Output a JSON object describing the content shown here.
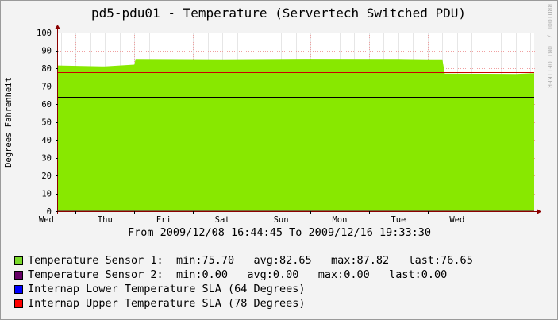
{
  "title": "pd5-pdu01 - Temperature (Servertech Switched PDU)",
  "watermark": "RRDTOOL / TOBI OETIKER",
  "time_range_label": "From 2009/12/08 16:44:45 To 2009/12/16 19:33:30",
  "colors": {
    "background": "#f3f3f3",
    "plot_bg": "#ffffff",
    "area_fill": "#88e800",
    "grid": "#f0a0a0",
    "axis": "#8b0000",
    "lower_sla": "#000000",
    "upper_sla": "#cc0000"
  },
  "legend": [
    {
      "swatch_color": "#7ad92b",
      "label": "Temperature Sensor 1:",
      "stats": "min:75.70   avg:82.65   max:87.82   last:76.65"
    },
    {
      "swatch_color": "#660066",
      "label": "Temperature Sensor 2:",
      "stats": "min:0.00   avg:0.00   max:0.00   last:0.00"
    },
    {
      "swatch_color": "#0000ff",
      "label": "Internap Lower Temperature SLA (64 Degrees)",
      "stats": ""
    },
    {
      "swatch_color": "#ff0000",
      "label": "Internap Upper Temperature SLA (78 Degrees)",
      "stats": ""
    }
  ],
  "chart_data": {
    "type": "area",
    "title": "pd5-pdu01 - Temperature (Servertech Switched PDU)",
    "ylabel": "Degrees Fahrenheit",
    "xlabel": "",
    "ylim": [
      0,
      100
    ],
    "yticks": [
      0,
      10,
      20,
      30,
      40,
      50,
      60,
      70,
      80,
      90,
      100
    ],
    "x_start": "2009/12/08 16:44:45",
    "x_end": "2009/12/16 19:33:30",
    "x_tick_labels": [
      "Wed",
      "Thu",
      "Fri",
      "Sat",
      "Sun",
      "Mon",
      "Tue",
      "Wed"
    ],
    "grid": true,
    "series": [
      {
        "name": "Temperature Sensor 1",
        "x": [
          "2009/12/08 16:44:45",
          "2009/12/09 12:00",
          "2009/12/10 00:00",
          "2009/12/10 00:30",
          "2009/12/11 12:00",
          "2009/12/13 00:00",
          "2009/12/14 12:00",
          "2009/12/15 00:00",
          "2009/12/15 06:00",
          "2009/12/15 07:00",
          "2009/12/16 12:00",
          "2009/12/16 19:33:30"
        ],
        "values": [
          81.5,
          81.0,
          82.0,
          85.2,
          85.0,
          85.3,
          85.2,
          85.0,
          85.0,
          77.0,
          76.8,
          77.2
        ]
      },
      {
        "name": "Temperature Sensor 2",
        "x": [
          "2009/12/08 16:44:45",
          "2009/12/16 19:33:30"
        ],
        "values": [
          0,
          0
        ]
      },
      {
        "name": "Internap Lower Temperature SLA (64 Degrees)",
        "x": [
          "2009/12/08 16:44:45",
          "2009/12/16 19:33:30"
        ],
        "values": [
          64,
          64
        ]
      },
      {
        "name": "Internap Upper Temperature SLA (78 Degrees)",
        "x": [
          "2009/12/08 16:44:45",
          "2009/12/16 19:33:30"
        ],
        "values": [
          78,
          78
        ]
      }
    ]
  }
}
